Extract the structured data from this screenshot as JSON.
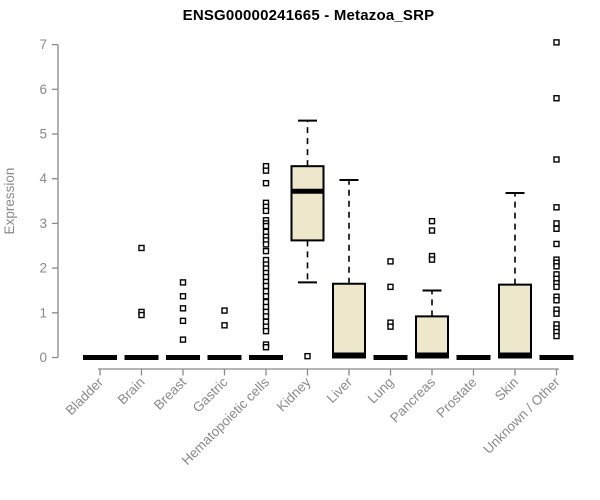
{
  "page": {
    "background": "#ffffff"
  },
  "chart_data": {
    "type": "boxplot",
    "title": "ENSG00000241665 - Metazoa_SRP",
    "xlabel": "",
    "ylabel": "Expression",
    "ylim": [
      0,
      7
    ],
    "yticks": [
      0,
      1,
      2,
      3,
      4,
      5,
      6,
      7
    ],
    "grid": false,
    "legend": "none",
    "categories": [
      "Bladder",
      "Brain",
      "Breast",
      "Gastric",
      "Hematopoietic cells",
      "Kidney",
      "Liver",
      "Lung",
      "Pancreas",
      "Prostate",
      "Skin",
      "Unknown / Other"
    ],
    "boxes": [
      {
        "label": "Bladder",
        "q1": 0,
        "median": 0,
        "q3": 0,
        "whisker_low": 0,
        "whisker_high": 0,
        "outliers": []
      },
      {
        "label": "Brain",
        "q1": 0,
        "median": 0,
        "q3": 0,
        "whisker_low": 0,
        "whisker_high": 0,
        "outliers": [
          2.45,
          1.02,
          0.95
        ]
      },
      {
        "label": "Breast",
        "q1": 0,
        "median": 0,
        "q3": 0,
        "whisker_low": 0,
        "whisker_high": 0,
        "outliers": [
          1.68,
          1.37,
          1.1,
          0.82,
          0.4
        ]
      },
      {
        "label": "Gastric",
        "q1": 0,
        "median": 0,
        "q3": 0,
        "whisker_low": 0,
        "whisker_high": 0,
        "outliers": [
          1.05,
          0.72
        ]
      },
      {
        "label": "Hematopoietic cells",
        "q1": 0,
        "median": 0,
        "q3": 0,
        "whisker_low": 0,
        "whisker_high": 0,
        "outliers": [
          4.28,
          4.18,
          3.9,
          3.46,
          3.37,
          3.28,
          3.07,
          3.0,
          2.94,
          2.81,
          2.7,
          2.62,
          2.53,
          2.38,
          2.18,
          2.08,
          1.99,
          1.89,
          1.8,
          1.69,
          1.6,
          1.48,
          1.37,
          1.24,
          1.13,
          1.02,
          0.92,
          0.8,
          0.69,
          0.59,
          0.29,
          0.23
        ]
      },
      {
        "label": "Kidney",
        "q1": 2.62,
        "median": 3.72,
        "q3": 4.28,
        "whisker_low": 1.68,
        "whisker_high": 5.3,
        "outliers": [
          0.03
        ]
      },
      {
        "label": "Liver",
        "q1": 0,
        "median": 0.05,
        "q3": 1.65,
        "whisker_low": 0,
        "whisker_high": 3.97,
        "outliers": []
      },
      {
        "label": "Lung",
        "q1": 0,
        "median": 0,
        "q3": 0,
        "whisker_low": 0,
        "whisker_high": 0,
        "outliers": [
          2.15,
          1.58,
          0.78,
          0.69
        ]
      },
      {
        "label": "Pancreas",
        "q1": 0,
        "median": 0.05,
        "q3": 0.92,
        "whisker_low": 0,
        "whisker_high": 1.5,
        "outliers": [
          3.05,
          2.84,
          2.27,
          2.19
        ]
      },
      {
        "label": "Prostate",
        "q1": 0,
        "median": 0,
        "q3": 0,
        "whisker_low": 0,
        "whisker_high": 0,
        "outliers": []
      },
      {
        "label": "Skin",
        "q1": 0,
        "median": 0.05,
        "q3": 1.63,
        "whisker_low": 0,
        "whisker_high": 3.68,
        "outliers": []
      },
      {
        "label": "Unknown / Other",
        "q1": 0,
        "median": 0,
        "q3": 0,
        "whisker_low": 0,
        "whisker_high": 0,
        "outliers": [
          7.05,
          5.8,
          4.43,
          3.36,
          3.0,
          2.88,
          2.54,
          2.19,
          2.12,
          2.04,
          1.86,
          1.76,
          1.66,
          1.58,
          1.36,
          1.28,
          1.07,
          0.98,
          0.74,
          0.65,
          0.57,
          0.48
        ]
      }
    ],
    "colors": {
      "box_fill": "#ede7cc",
      "box_border": "#000000",
      "median": "#000000",
      "whisker": "#000000",
      "outlier_fill": "#ffffff",
      "outlier_border": "#000000",
      "axis": "#8a8a8a",
      "tick_label": "#8a8a8a",
      "title": "#000000",
      "background": "#ffffff"
    }
  }
}
